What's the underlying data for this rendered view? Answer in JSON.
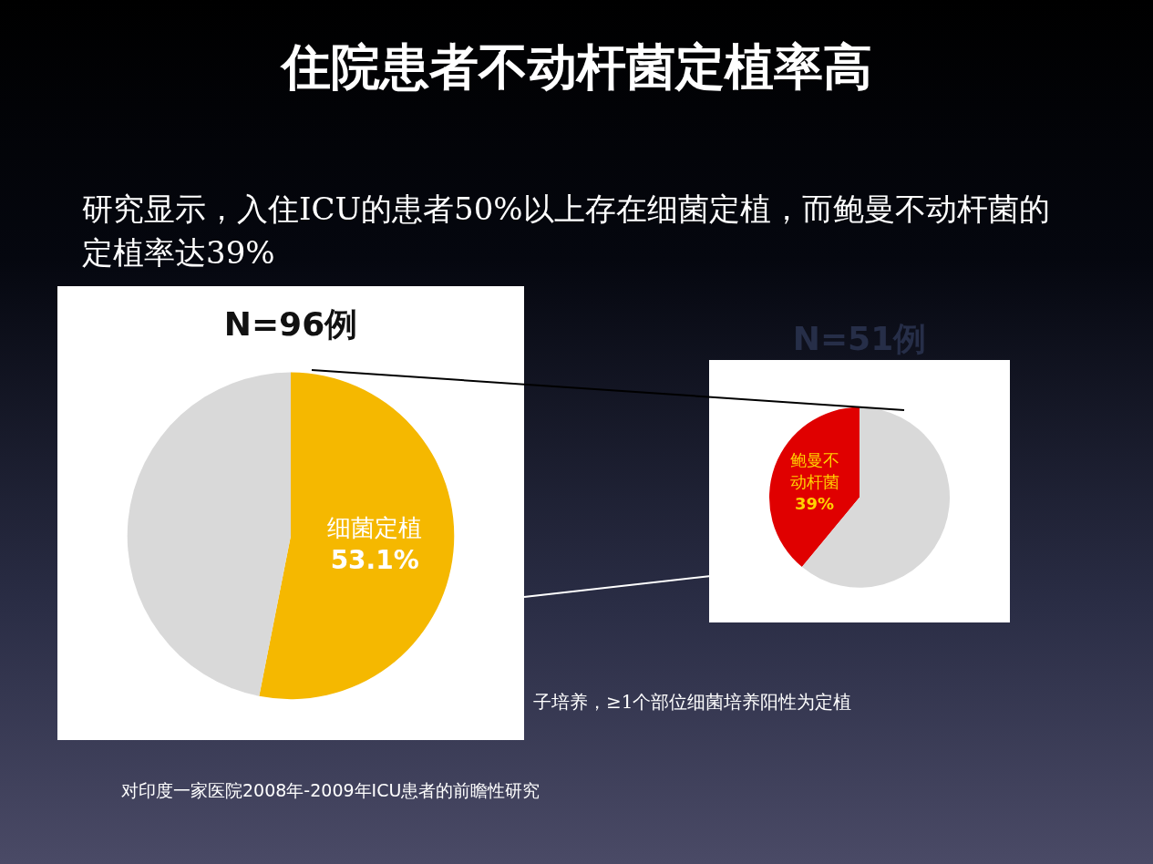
{
  "chart_data": [
    {
      "type": "pie",
      "title": "N=96例",
      "categories": [
        "细菌定植",
        null
      ],
      "values": [
        53.1,
        46.9
      ],
      "colors": [
        "#f5b800",
        "#d9d9d9"
      ],
      "value_labels": [
        "53.1%",
        null
      ],
      "annotations": [
        "住院患者不动杆菌定植率高",
        "研究显示，入住ICU的患者50%以上存在细菌定植，而鲍曼不动杆菌的定植率达39%",
        "子培养，≥1个部位细菌培养阳性为定植",
        "对印度一家医院2008年-2009年ICU患者的前瞻性研究"
      ]
    },
    {
      "type": "pie",
      "title": "N=51例",
      "categories": [
        "鲍曼不动杆菌",
        null
      ],
      "values": [
        39,
        61
      ],
      "colors": [
        "#e00000",
        "#d9d9d9"
      ],
      "value_labels": [
        "39%",
        null
      ]
    }
  ]
}
